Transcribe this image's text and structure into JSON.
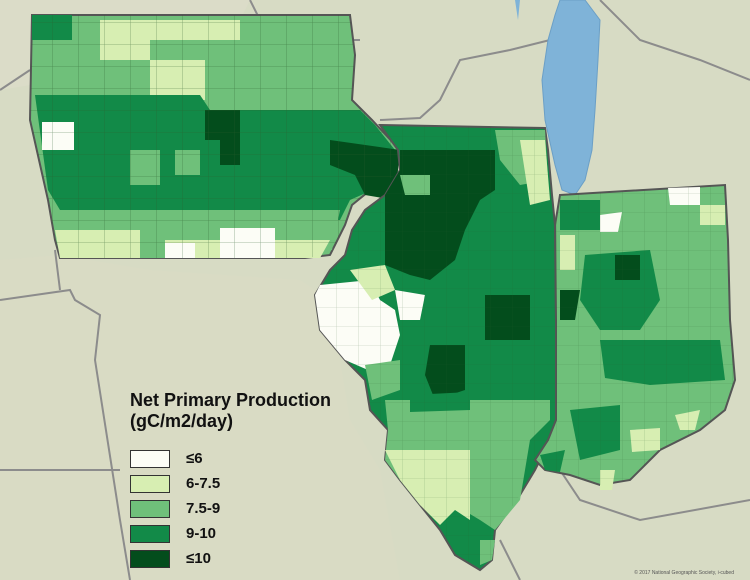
{
  "legend": {
    "title_line1": "Net Primary Production",
    "title_line2": "(gC/m2/day)",
    "classes": [
      {
        "label": "≤6",
        "color": "#fcfdf6"
      },
      {
        "label": "6-7.5",
        "color": "#d7eeb2"
      },
      {
        "label": "7.5-9",
        "color": "#6fc07a"
      },
      {
        "label": "9-10",
        "color": "#128a48"
      },
      {
        "label": "≤10",
        "color": "#034d1c"
      }
    ]
  },
  "credit": "© 2017 National Geographic Society, i-cubed"
}
